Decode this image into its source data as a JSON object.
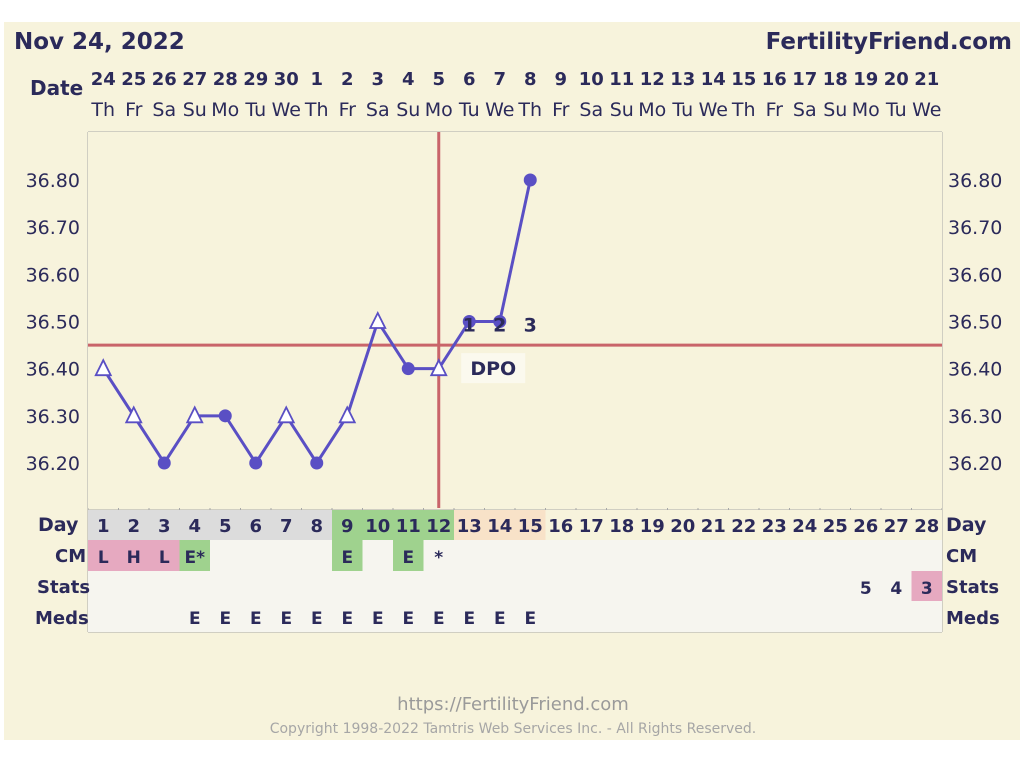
{
  "header": {
    "date": "Nov 24, 2022",
    "brand": "FertilityFriend.com"
  },
  "footer": {
    "url": "https://FertilityFriend.com",
    "copyright": "Copyright 1998-2022 Tamtris Web Services Inc. - All Rights Reserved."
  },
  "labels": {
    "date": "Date",
    "day": "Day",
    "cm": "CM",
    "stats": "Stats",
    "meds": "Meds",
    "dpo": "DPO"
  },
  "colors": {
    "background": "#f7f3dc",
    "line": "#5a4fc4",
    "coverline": "#c9646a",
    "text": "#2b2a5a",
    "grid": "#a8a8a8",
    "green_cell": "#9fd28e",
    "pink_cell": "#e6a9c0",
    "peach_cell": "#f8e2c8"
  },
  "chart_data": {
    "type": "line",
    "x_dates": [
      "24",
      "25",
      "26",
      "27",
      "28",
      "29",
      "30",
      "1",
      "2",
      "3",
      "4",
      "5",
      "6",
      "7",
      "8",
      "9",
      "10",
      "11",
      "12",
      "13",
      "14",
      "15",
      "16",
      "17",
      "18",
      "19",
      "20",
      "21"
    ],
    "x_weekdays": [
      "Th",
      "Fr",
      "Sa",
      "Su",
      "Mo",
      "Tu",
      "We",
      "Th",
      "Fr",
      "Sa",
      "Su",
      "Mo",
      "Tu",
      "We",
      "Th",
      "Fr",
      "Sa",
      "Su",
      "Mo",
      "Tu",
      "We",
      "Th",
      "Fr",
      "Sa",
      "Su",
      "Mo",
      "Tu",
      "We"
    ],
    "cycle_days": [
      1,
      2,
      3,
      4,
      5,
      6,
      7,
      8,
      9,
      10,
      11,
      12,
      13,
      14,
      15,
      16,
      17,
      18,
      19,
      20,
      21,
      22,
      23,
      24,
      25,
      26,
      27,
      28
    ],
    "y_ticks": [
      "36.80",
      "36.70",
      "36.60",
      "36.50",
      "36.40",
      "36.30",
      "36.20"
    ],
    "ylim": [
      36.1,
      36.9
    ],
    "series": [
      {
        "cycle_days": [
          1,
          2,
          3,
          4,
          5,
          6,
          7,
          8,
          9,
          10,
          11,
          12,
          13,
          14,
          15
        ],
        "values": [
          36.4,
          36.3,
          36.2,
          36.3,
          36.3,
          36.2,
          36.3,
          36.2,
          36.3,
          36.5,
          36.4,
          36.4,
          36.5,
          36.5,
          36.8
        ],
        "markers": [
          "open-triangle",
          "open-triangle",
          "dot",
          "open-triangle",
          "dot",
          "dot",
          "open-triangle",
          "dot",
          "open-triangle",
          "open-triangle",
          "dot",
          "open-triangle",
          "dot",
          "dot",
          "dot"
        ]
      }
    ],
    "coverline": 36.45,
    "ovulation_day": 12,
    "dpo_labels": [
      {
        "day": 13,
        "label": "1"
      },
      {
        "day": 14,
        "label": "2"
      },
      {
        "day": 15,
        "label": "3"
      }
    ],
    "day_highlight": {
      "green": [
        9,
        10,
        11,
        12
      ],
      "peach": [
        13,
        14,
        15
      ]
    },
    "cm": [
      {
        "day": 1,
        "value": "L",
        "color": "pink"
      },
      {
        "day": 2,
        "value": "H",
        "color": "pink"
      },
      {
        "day": 3,
        "value": "L",
        "color": "pink"
      },
      {
        "day": 4,
        "value": "E*",
        "color": "green"
      },
      {
        "day": 9,
        "value": "E",
        "color": "green"
      },
      {
        "day": 11,
        "value": "E",
        "color": "green"
      },
      {
        "day": 12,
        "value": "*",
        "color": "none"
      }
    ],
    "stats": [
      {
        "day": 26,
        "value": "5",
        "color": "none"
      },
      {
        "day": 27,
        "value": "4",
        "color": "none"
      },
      {
        "day": 28,
        "value": "3",
        "color": "pink"
      }
    ],
    "meds": [
      {
        "day": 4,
        "value": "E"
      },
      {
        "day": 5,
        "value": "E"
      },
      {
        "day": 6,
        "value": "E"
      },
      {
        "day": 7,
        "value": "E"
      },
      {
        "day": 8,
        "value": "E"
      },
      {
        "day": 9,
        "value": "E"
      },
      {
        "day": 10,
        "value": "E"
      },
      {
        "day": 11,
        "value": "E"
      },
      {
        "day": 12,
        "value": "E"
      },
      {
        "day": 13,
        "value": "E"
      },
      {
        "day": 14,
        "value": "E"
      },
      {
        "day": 15,
        "value": "E"
      }
    ]
  }
}
